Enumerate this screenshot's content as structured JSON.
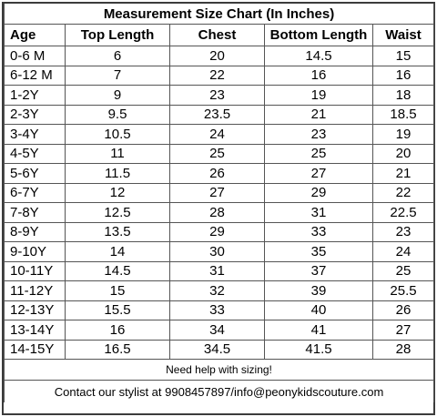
{
  "title": "Measurement Size Chart (In Inches)",
  "columns": [
    "Age",
    "Top Length",
    "Chest",
    "Bottom Length",
    "Waist"
  ],
  "rows": [
    [
      "0-6 M",
      "6",
      "20",
      "14.5",
      "15"
    ],
    [
      "6-12 M",
      "7",
      "22",
      "16",
      "16"
    ],
    [
      "1-2Y",
      "9",
      "23",
      "19",
      "18"
    ],
    [
      "2-3Y",
      "9.5",
      "23.5",
      "21",
      "18.5"
    ],
    [
      "3-4Y",
      "10.5",
      "24",
      "23",
      "19"
    ],
    [
      "4-5Y",
      "11",
      "25",
      "25",
      "20"
    ],
    [
      "5-6Y",
      "11.5",
      "26",
      "27",
      "21"
    ],
    [
      "6-7Y",
      "12",
      "27",
      "29",
      "22"
    ],
    [
      "7-8Y",
      "12.5",
      "28",
      "31",
      "22.5"
    ],
    [
      "8-9Y",
      "13.5",
      "29",
      "33",
      "23"
    ],
    [
      "9-10Y",
      "14",
      "30",
      "35",
      "24"
    ],
    [
      "10-11Y",
      "14.5",
      "31",
      "37",
      "25"
    ],
    [
      "11-12Y",
      "15",
      "32",
      "39",
      "25.5"
    ],
    [
      "12-13Y",
      "15.5",
      "33",
      "40",
      "26"
    ],
    [
      "13-14Y",
      "16",
      "34",
      "41",
      "27"
    ],
    [
      "14-15Y",
      "16.5",
      "34.5",
      "41.5",
      "28"
    ]
  ],
  "help_text": "Need help with sizing!",
  "contact_text": "Contact our stylist at 9908457897/info@peonykidscouture.com"
}
